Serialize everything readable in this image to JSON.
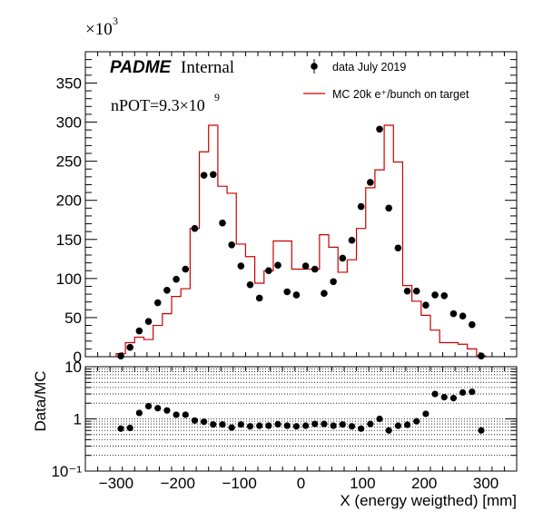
{
  "chart_data": [
    {
      "type": "scatter",
      "title": "",
      "label_bold": "PADME",
      "label_normal": "Internal",
      "npot_prefix": "nPOT=9.3×10",
      "npot_exp": "9",
      "y_multiplier_base": "×10",
      "y_multiplier_exp": "3",
      "xlim": [
        -350,
        350
      ],
      "ylim": [
        0,
        390000
      ],
      "y_ticks": [
        0,
        50000,
        100000,
        150000,
        200000,
        250000,
        300000,
        350000
      ],
      "y_tick_labels": [
        "0",
        "50",
        "100",
        "150",
        "200",
        "250",
        "300",
        "350"
      ],
      "legend_position": "top-right",
      "bin_edges": [
        -300,
        -285,
        -270,
        -255,
        -240,
        -225,
        -210,
        -195,
        -180,
        -165,
        -150,
        -135,
        -120,
        -105,
        -90,
        -75,
        -60,
        -45,
        -30,
        -15,
        0,
        15,
        30,
        45,
        60,
        75,
        90,
        105,
        120,
        135,
        150,
        165,
        180,
        195,
        210,
        225,
        240,
        255,
        270,
        285,
        300
      ],
      "series": [
        {
          "name": "data July 2019",
          "color": "#000000",
          "style": "markers",
          "x": [
            -292.5,
            -277.5,
            -262.5,
            -247.5,
            -232.5,
            -217.5,
            -202.5,
            -187.5,
            -172.5,
            -157.5,
            -142.5,
            -127.5,
            -112.5,
            -97.5,
            -82.5,
            -67.5,
            -52.5,
            -37.5,
            -22.5,
            -7.5,
            7.5,
            22.5,
            37.5,
            52.5,
            67.5,
            82.5,
            97.5,
            112.5,
            127.5,
            142.5,
            157.5,
            172.5,
            187.5,
            202.5,
            217.5,
            232.5,
            247.5,
            262.5,
            277.5,
            292.5
          ],
          "y": [
            1000,
            12000,
            33000,
            45000,
            69000,
            85000,
            99000,
            112000,
            164000,
            232000,
            233000,
            171000,
            143000,
            116000,
            92000,
            75000,
            110000,
            117000,
            83000,
            79000,
            116000,
            112000,
            81000,
            96000,
            126000,
            149000,
            192000,
            223000,
            291000,
            190000,
            139000,
            84000,
            84000,
            66000,
            79000,
            78000,
            55000,
            52000,
            41000,
            1000
          ]
        },
        {
          "name": "MC 20k e⁺/bunch on target",
          "color": "#cc0000",
          "style": "histogram",
          "values": [
            4000,
            18000,
            25000,
            22000,
            40000,
            55000,
            77000,
            87000,
            164000,
            262000,
            296000,
            218000,
            209000,
            144000,
            128000,
            94000,
            110000,
            148000,
            148000,
            112000,
            112000,
            112000,
            156000,
            140000,
            108000,
            124000,
            164000,
            216000,
            239000,
            296000,
            249000,
            91000,
            71000,
            53000,
            34000,
            18000,
            18000,
            16000,
            10000,
            1000
          ]
        }
      ]
    },
    {
      "type": "scatter",
      "title": "",
      "ylabel": "Data/MC",
      "xlabel": "X (energy weigthed) [mm]",
      "xlim": [
        -350,
        350
      ],
      "ylim": [
        0.1,
        10
      ],
      "y_scale": "log",
      "y_ticks": [
        0.1,
        1,
        10
      ],
      "y_tick_labels": [
        "10⁻¹",
        "1",
        "10"
      ],
      "x_ticks": [
        -300,
        -200,
        -100,
        0,
        100,
        200,
        300
      ],
      "x_tick_labels": [
        "−300",
        "−200",
        "−100",
        "0",
        "100",
        "200",
        "300"
      ],
      "grid": true,
      "series": [
        {
          "color": "#000000",
          "x": [
            -292.5,
            -277.5,
            -262.5,
            -247.5,
            -232.5,
            -217.5,
            -202.5,
            -187.5,
            -172.5,
            -157.5,
            -142.5,
            -127.5,
            -112.5,
            -97.5,
            -82.5,
            -67.5,
            -52.5,
            -37.5,
            -22.5,
            -7.5,
            7.5,
            22.5,
            37.5,
            52.5,
            67.5,
            82.5,
            97.5,
            112.5,
            127.5,
            142.5,
            157.5,
            172.5,
            187.5,
            202.5,
            217.5,
            232.5,
            247.5,
            262.5,
            277.5,
            292.5
          ],
          "y": [
            0.65,
            0.67,
            1.3,
            1.75,
            1.6,
            1.45,
            1.2,
            1.2,
            0.93,
            0.88,
            0.78,
            0.78,
            0.68,
            0.78,
            0.72,
            0.74,
            0.74,
            0.79,
            0.74,
            0.72,
            0.74,
            0.8,
            0.8,
            0.74,
            0.78,
            0.72,
            0.65,
            0.8,
            1.0,
            0.6,
            0.74,
            0.77,
            0.9,
            1.25,
            3.0,
            2.6,
            2.5,
            3.2,
            3.3,
            0.6
          ]
        }
      ]
    }
  ]
}
